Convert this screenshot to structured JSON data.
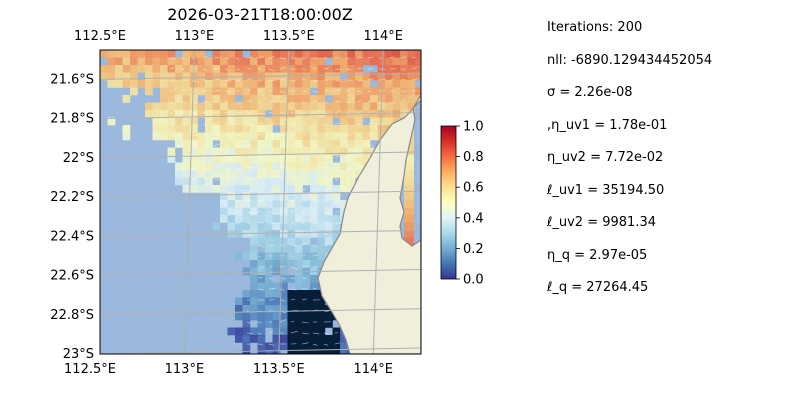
{
  "chart_data": {
    "type": "heatmap",
    "title": "2026-03-21T18:00:00Z",
    "x_tick_labels_top": [
      "112.5°E",
      "113°E",
      "113.5°E",
      "114°E"
    ],
    "x_tick_labels_bottom": [
      "112.5°E",
      "113°E",
      "113.5°E",
      "114°E"
    ],
    "y_tick_labels": [
      "21.6°S",
      "21.8°S",
      "22°S",
      "22.2°S",
      "22.4°S",
      "22.6°S",
      "22.8°S",
      "23°S"
    ],
    "x_ticks": [
      112.5,
      113.0,
      113.5,
      114.0
    ],
    "y_ticks": [
      -21.6,
      -21.8,
      -22.0,
      -22.2,
      -22.4,
      -22.6,
      -22.8,
      -23.0
    ],
    "xlim": [
      112.5,
      114.2
    ],
    "ylim": [
      -23.0,
      -21.45
    ],
    "grid": true,
    "colorbar": {
      "range": [
        0.0,
        1.0
      ],
      "tick_labels": [
        "0.0",
        "0.2",
        "0.4",
        "0.6",
        "0.8",
        "1.0"
      ],
      "ticks": [
        0.0,
        0.2,
        0.4,
        0.6,
        0.8,
        1.0
      ],
      "colormap": "RdYlBu_r"
    },
    "colors": {
      "ocean": "#9bb8dd",
      "land": "#efefdc",
      "coast": "#888888",
      "grid": "#b0b0b0"
    }
  },
  "params": [
    "Iterations: 200",
    "nll: -6890.129434452054",
    "σ = 2.26e-08",
    ",η_uv1 = 1.78e-01",
    "η_uv2 = 7.72e-02",
    "ℓ_uv1 = 35194.50",
    "ℓ_uv2 = 9981.34",
    "η_q = 2.97e-05",
    "ℓ_q = 27264.45"
  ]
}
